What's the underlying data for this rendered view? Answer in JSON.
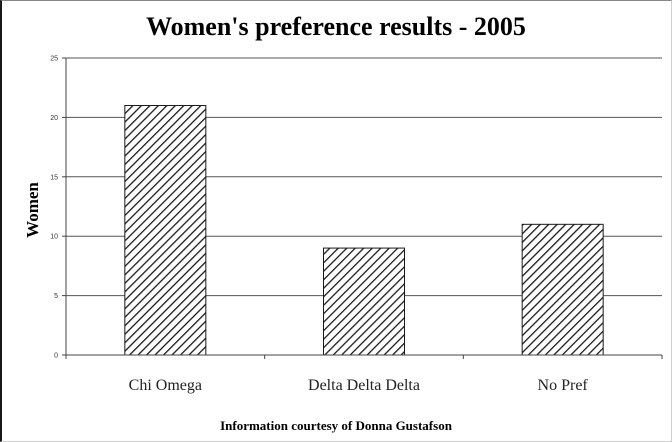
{
  "chart_data": {
    "type": "bar",
    "title": "Women's preference results - 2005",
    "ylabel": "Women",
    "xlabel": "",
    "categories": [
      "Chi Omega",
      "Delta Delta Delta",
      "No Pref"
    ],
    "values": [
      21,
      9,
      11
    ],
    "ylim": [
      0,
      25
    ],
    "yticks": [
      0,
      5,
      10,
      15,
      20,
      25
    ],
    "grid": true,
    "bar_pattern": "diagonal-hatch",
    "footer": "Information courtesy of Donna Gustafson"
  },
  "colors": {
    "bar_fill": "#ffffff",
    "hatch": "#1a1a1a",
    "gridline": "#555555",
    "axis": "#444444"
  }
}
